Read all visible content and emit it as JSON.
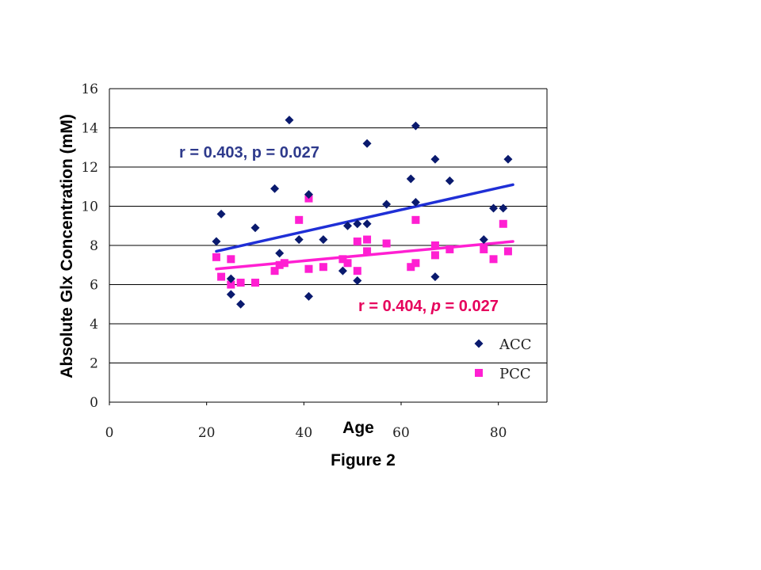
{
  "chart_data": {
    "type": "scatter",
    "xlabel": "Age",
    "ylabel": "Absolute Glx Concentration (mM)",
    "caption": "Figure 2",
    "xlim": [
      0,
      90
    ],
    "ylim": [
      0,
      16
    ],
    "x_ticks": [
      "0",
      "20",
      "40",
      "60",
      "80"
    ],
    "y_ticks": [
      "0",
      "2",
      "4",
      "6",
      "8",
      "10",
      "12",
      "14",
      "16"
    ],
    "grid": "horizontal",
    "legend_position": "bottom-right",
    "series": [
      {
        "name": "ACC",
        "marker": "diamond",
        "color": "#0a1a6e",
        "trend_color": "#1f2fd6",
        "trendline": {
          "x1": 22,
          "y1": 7.7,
          "x2": 83,
          "y2": 11.1
        },
        "annotation": {
          "r": "0.403",
          "p": "0.027",
          "text_color": "#2e3a8c"
        },
        "points": [
          [
            22,
            8.2
          ],
          [
            23,
            9.6
          ],
          [
            25,
            5.5
          ],
          [
            25,
            6.3
          ],
          [
            27,
            5.0
          ],
          [
            30,
            8.9
          ],
          [
            34,
            10.9
          ],
          [
            35,
            7.6
          ],
          [
            37,
            14.4
          ],
          [
            39,
            8.3
          ],
          [
            41,
            10.6
          ],
          [
            41,
            5.4
          ],
          [
            44,
            8.3
          ],
          [
            48,
            6.7
          ],
          [
            49,
            9.0
          ],
          [
            51,
            9.1
          ],
          [
            51,
            6.2
          ],
          [
            53,
            9.1
          ],
          [
            53,
            13.2
          ],
          [
            57,
            10.1
          ],
          [
            62,
            11.4
          ],
          [
            63,
            14.1
          ],
          [
            63,
            10.2
          ],
          [
            67,
            12.4
          ],
          [
            67,
            6.4
          ],
          [
            70,
            11.3
          ],
          [
            77,
            8.3
          ],
          [
            79,
            9.9
          ],
          [
            81,
            9.9
          ],
          [
            82,
            12.4
          ]
        ]
      },
      {
        "name": "PCC",
        "marker": "square",
        "color": "#ff1fd2",
        "trend_color": "#ff1fd2",
        "trendline": {
          "x1": 22,
          "y1": 6.8,
          "x2": 83,
          "y2": 8.2
        },
        "annotation": {
          "r": "0.404",
          "p": "0.027",
          "text_color": "#e6005c"
        },
        "points": [
          [
            22,
            7.4
          ],
          [
            23,
            6.4
          ],
          [
            25,
            7.3
          ],
          [
            25,
            6.0
          ],
          [
            27,
            6.1
          ],
          [
            30,
            6.1
          ],
          [
            34,
            6.7
          ],
          [
            35,
            7.0
          ],
          [
            36,
            7.1
          ],
          [
            39,
            9.3
          ],
          [
            41,
            10.4
          ],
          [
            41,
            6.8
          ],
          [
            44,
            6.9
          ],
          [
            48,
            7.3
          ],
          [
            49,
            7.1
          ],
          [
            51,
            8.2
          ],
          [
            51,
            6.7
          ],
          [
            53,
            8.3
          ],
          [
            53,
            7.7
          ],
          [
            57,
            8.1
          ],
          [
            62,
            6.9
          ],
          [
            63,
            9.3
          ],
          [
            63,
            7.1
          ],
          [
            67,
            8.0
          ],
          [
            67,
            7.5
          ],
          [
            70,
            7.8
          ],
          [
            77,
            7.8
          ],
          [
            79,
            7.3
          ],
          [
            81,
            9.1
          ],
          [
            82,
            7.7
          ]
        ]
      }
    ]
  }
}
